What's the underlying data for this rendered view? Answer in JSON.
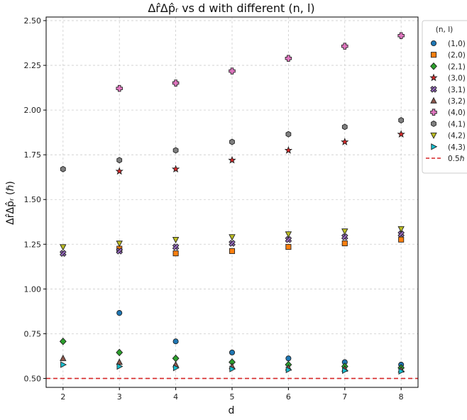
{
  "chart_data": {
    "type": "scatter",
    "title": "Δr̂Δp̂ᵣ vs d with different (n, l)",
    "xlabel": "d",
    "ylabel": "Δr̂Δp̂ᵣ (ℏ)",
    "x": [
      2,
      3,
      4,
      5,
      6,
      7,
      8
    ],
    "xticks": [
      "2",
      "3",
      "4",
      "5",
      "6",
      "7",
      "8"
    ],
    "yticks": [
      "0.50",
      "0.75",
      "1.00",
      "1.25",
      "1.50",
      "1.75",
      "2.00",
      "2.25",
      "2.50"
    ],
    "xlim": [
      1.7,
      8.3
    ],
    "ylim": [
      0.45,
      2.52
    ],
    "grid": true,
    "legend_title": "(n, l)",
    "legend_position": "upper right, outside plot",
    "series": [
      {
        "name": "(1,0)",
        "color": "#1f77b4",
        "marker": "circle",
        "x": [
          3,
          4,
          5,
          6,
          7,
          8
        ],
        "y": [
          0.866,
          0.707,
          0.645,
          0.612,
          0.591,
          0.577
        ]
      },
      {
        "name": "(2,0)",
        "color": "#ff7f0e",
        "marker": "square",
        "x": [
          3,
          4,
          5,
          6,
          7,
          8
        ],
        "y": [
          1.225,
          1.199,
          1.212,
          1.235,
          1.255,
          1.276
        ]
      },
      {
        "name": "(2,1)",
        "color": "#2ca02c",
        "marker": "diamond",
        "x": [
          2,
          3,
          4,
          5,
          6,
          7,
          8
        ],
        "y": [
          0.707,
          0.645,
          0.612,
          0.591,
          0.577,
          0.567,
          0.559
        ]
      },
      {
        "name": "(3,0)",
        "color": "#d62728",
        "marker": "star",
        "x": [
          3,
          4,
          5,
          6,
          7,
          8
        ],
        "y": [
          1.658,
          1.67,
          1.72,
          1.775,
          1.822,
          1.865
        ]
      },
      {
        "name": "(3,1)",
        "color": "#9467bd",
        "marker": "x",
        "x": [
          2,
          3,
          4,
          5,
          6,
          7,
          8
        ],
        "y": [
          1.199,
          1.212,
          1.235,
          1.255,
          1.276,
          1.291,
          1.307
        ]
      },
      {
        "name": "(3,2)",
        "color": "#8c564b",
        "marker": "triangle-up",
        "x": [
          2,
          3,
          4,
          5,
          6,
          7,
          8
        ],
        "y": [
          0.612,
          0.591,
          0.577,
          0.567,
          0.559,
          0.553,
          0.548
        ]
      },
      {
        "name": "(4,0)",
        "color": "#e377c2",
        "marker": "plus",
        "x": [
          3,
          4,
          5,
          6,
          7,
          8
        ],
        "y": [
          2.121,
          2.151,
          2.218,
          2.289,
          2.357,
          2.416
        ]
      },
      {
        "name": "(4,1)",
        "color": "#7f7f7f",
        "marker": "hexagon",
        "x": [
          2,
          3,
          4,
          5,
          6,
          7,
          8
        ],
        "y": [
          1.67,
          1.72,
          1.775,
          1.822,
          1.865,
          1.906,
          1.943
        ]
      },
      {
        "name": "(4,2)",
        "color": "#bcbd22",
        "marker": "triangle-down",
        "x": [
          2,
          3,
          4,
          5,
          6,
          7,
          8
        ],
        "y": [
          1.235,
          1.255,
          1.276,
          1.291,
          1.307,
          1.323,
          1.336
        ]
      },
      {
        "name": "(4,3)",
        "color": "#17becf",
        "marker": "triangle-right",
        "x": [
          2,
          3,
          4,
          5,
          6,
          7,
          8
        ],
        "y": [
          0.577,
          0.567,
          0.559,
          0.553,
          0.548,
          0.544,
          0.54
        ]
      }
    ],
    "reference_line": {
      "name": "0.5ℏ",
      "y": 0.5,
      "color": "#d62728",
      "style": "dashed"
    }
  }
}
